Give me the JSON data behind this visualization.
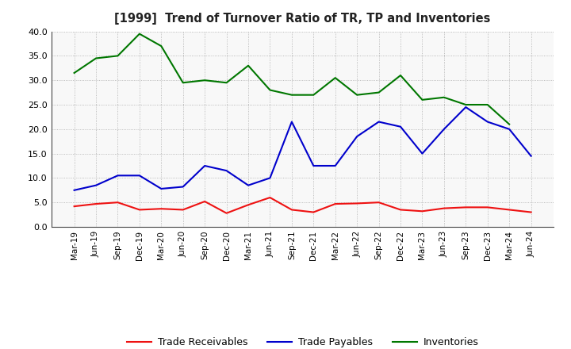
{
  "title": "[1999]  Trend of Turnover Ratio of TR, TP and Inventories",
  "labels": [
    "Mar-19",
    "Jun-19",
    "Sep-19",
    "Dec-19",
    "Mar-20",
    "Jun-20",
    "Sep-20",
    "Dec-20",
    "Mar-21",
    "Jun-21",
    "Sep-21",
    "Dec-21",
    "Mar-22",
    "Jun-22",
    "Sep-22",
    "Dec-22",
    "Mar-23",
    "Jun-23",
    "Sep-23",
    "Dec-23",
    "Mar-24",
    "Jun-24"
  ],
  "trade_receivables": [
    4.2,
    4.7,
    5.0,
    3.5,
    3.7,
    3.5,
    5.2,
    2.8,
    4.5,
    6.0,
    3.5,
    3.0,
    4.7,
    4.8,
    5.0,
    3.5,
    3.2,
    3.8,
    4.0,
    4.0,
    3.5,
    3.0
  ],
  "trade_payables": [
    7.5,
    8.5,
    10.5,
    10.5,
    7.8,
    8.2,
    12.5,
    11.5,
    8.5,
    10.0,
    21.5,
    12.5,
    12.5,
    18.5,
    21.5,
    20.5,
    15.0,
    20.0,
    24.5,
    21.5,
    20.0,
    14.5
  ],
  "inventories": [
    31.5,
    34.5,
    35.0,
    39.5,
    37.0,
    29.5,
    30.0,
    29.5,
    33.0,
    28.0,
    27.0,
    27.0,
    30.5,
    27.0,
    27.5,
    31.0,
    26.0,
    26.5,
    25.0,
    25.0,
    21.0,
    null
  ],
  "tr_color": "#ee1111",
  "tp_color": "#0000cc",
  "inv_color": "#007700",
  "ylim": [
    0,
    40
  ],
  "yticks": [
    0.0,
    5.0,
    10.0,
    15.0,
    20.0,
    25.0,
    30.0,
    35.0,
    40.0
  ],
  "bg_color": "#ffffff",
  "plot_bg_color": "#f8f8f8",
  "legend_labels": [
    "Trade Receivables",
    "Trade Payables",
    "Inventories"
  ]
}
